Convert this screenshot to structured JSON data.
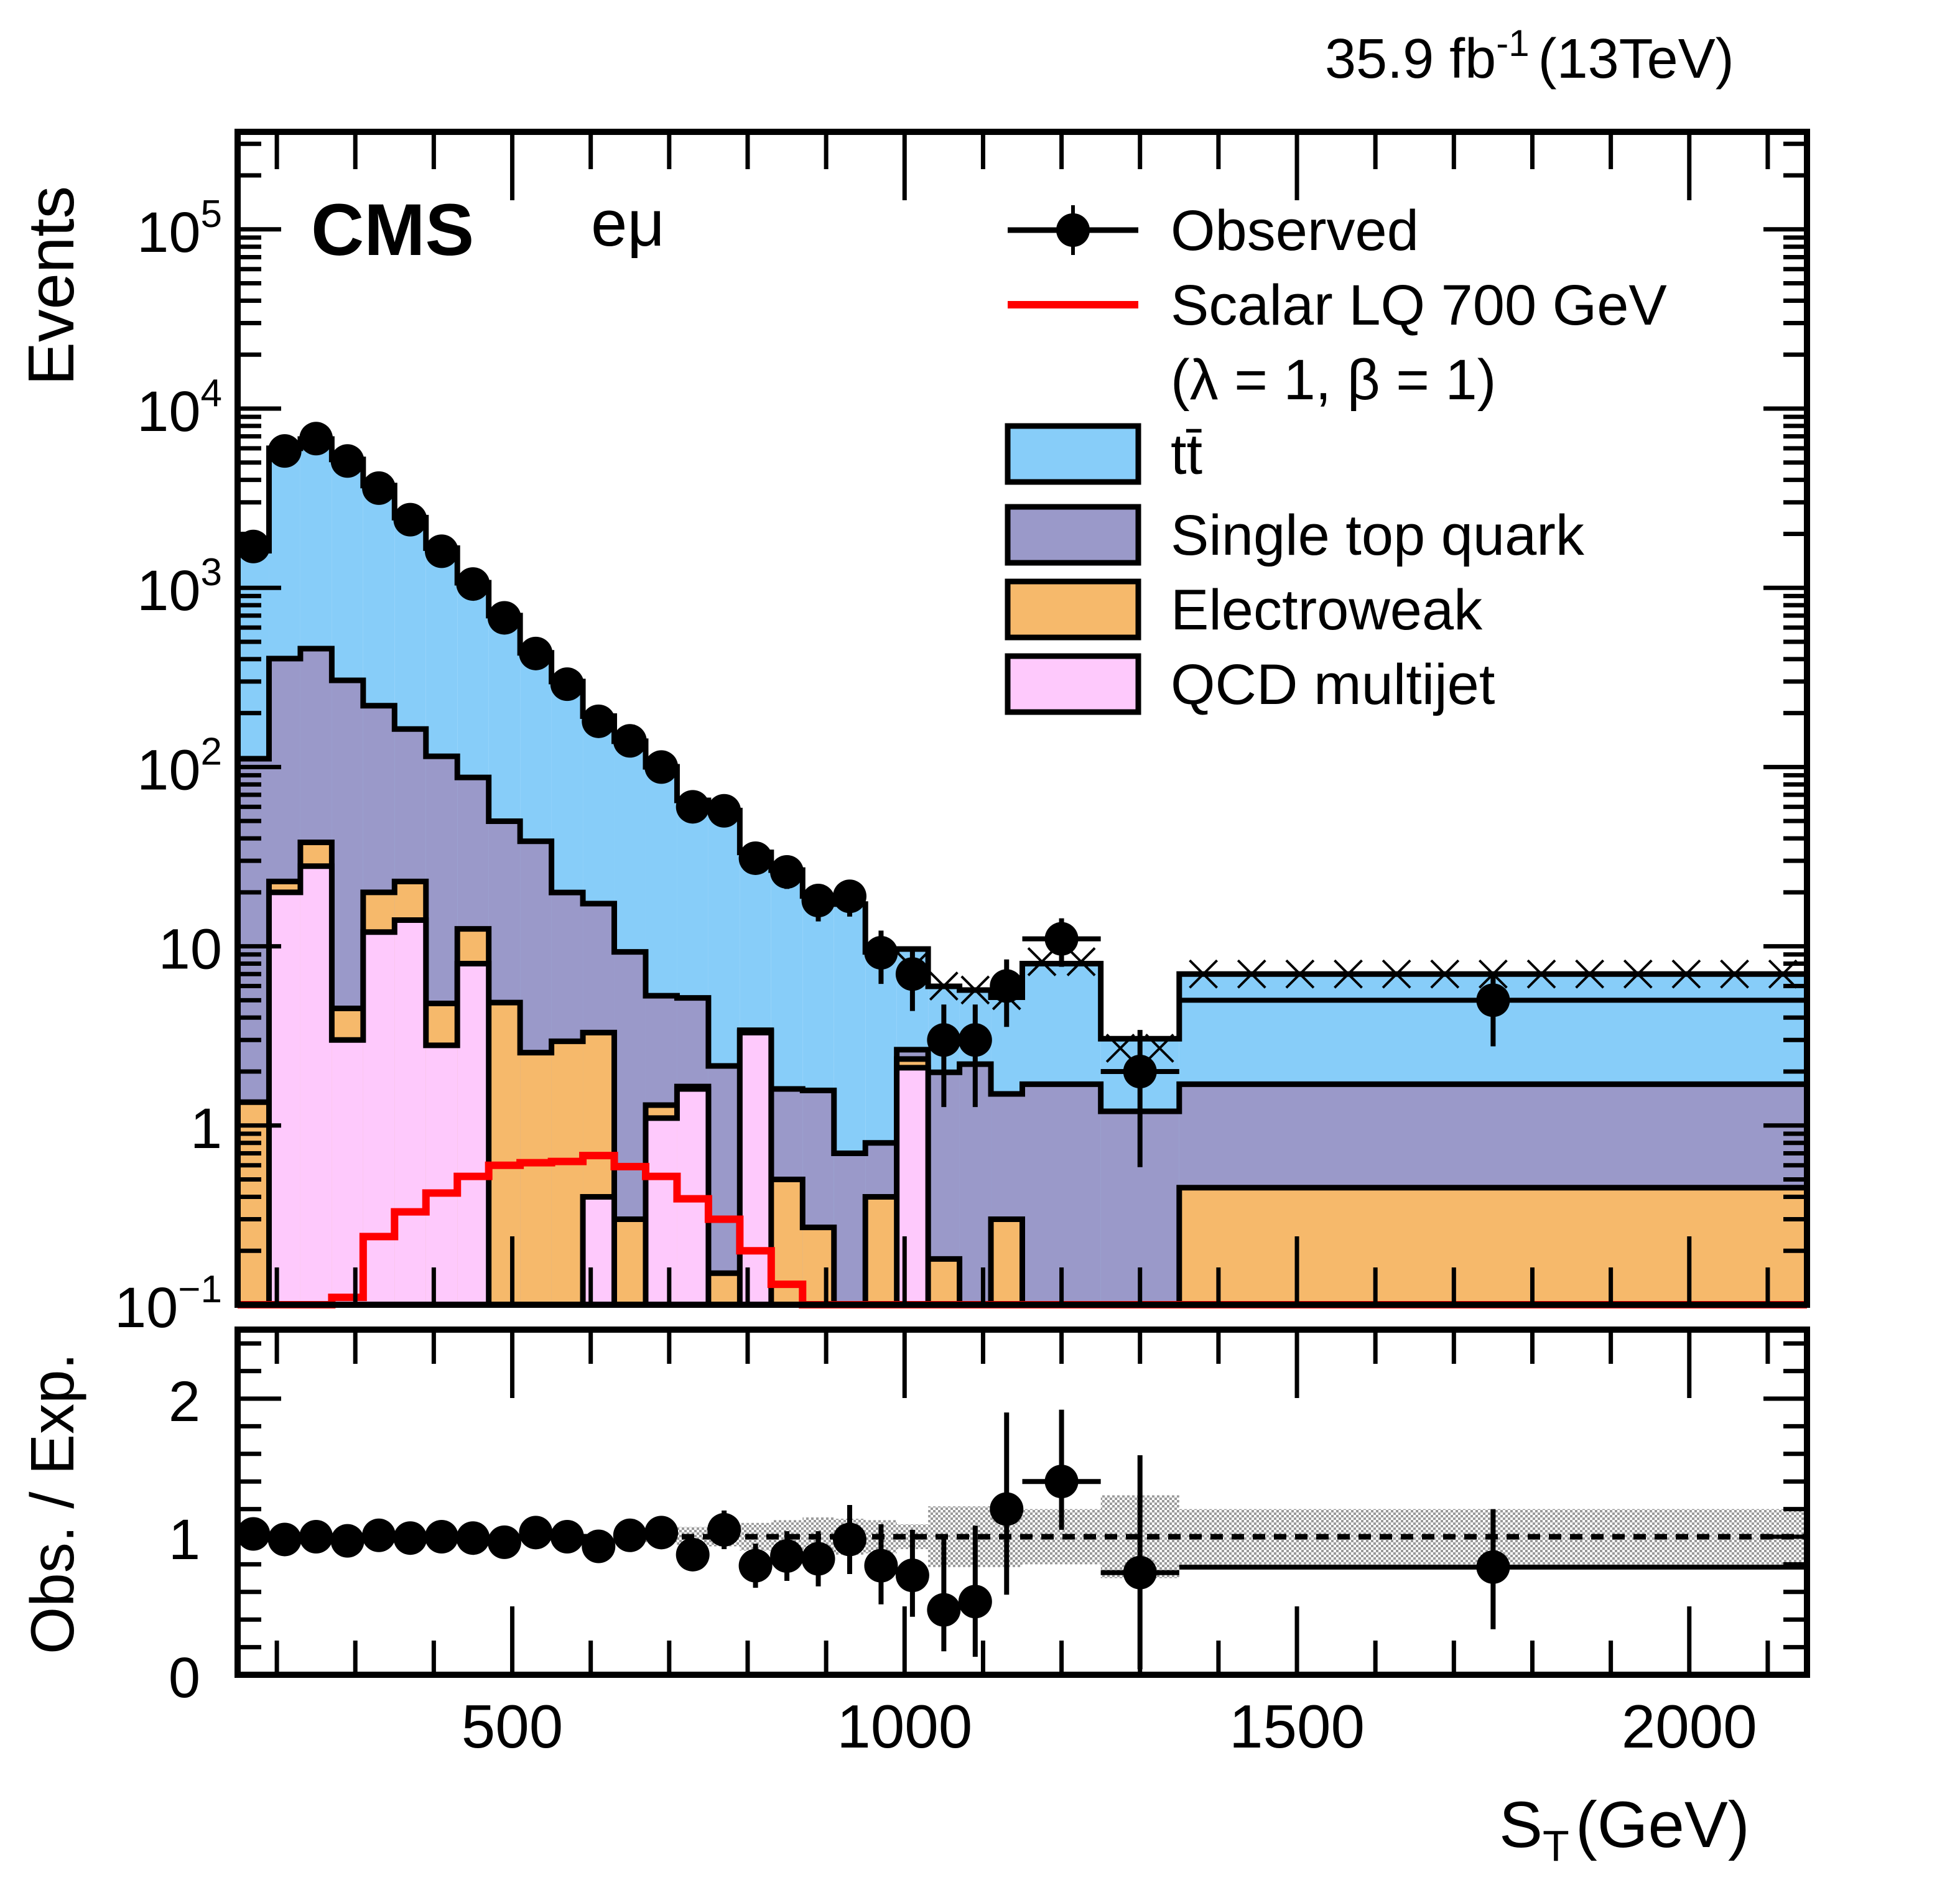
{
  "header": {
    "lumi_label": "35.9 fb",
    "lumi_exp": "-1",
    "energy_label": "(13TeV)",
    "experiment": "CMS",
    "channel": "eμ"
  },
  "legend": {
    "items": [
      {
        "key": "observed",
        "label": "Observed",
        "kind": "marker"
      },
      {
        "key": "signal",
        "label": "Scalar LQ 700 GeV",
        "label2": "(λ = 1, β = 1)",
        "kind": "line",
        "color": "#ff0000"
      },
      {
        "key": "ttbar",
        "label": "tt̄",
        "kind": "box",
        "color": "#87cdf9"
      },
      {
        "key": "single_top",
        "label": "Single top quark",
        "kind": "box",
        "color": "#9a99c9"
      },
      {
        "key": "electroweak",
        "label": "Electroweak",
        "kind": "box",
        "color": "#f6b96b"
      },
      {
        "key": "qcd",
        "label": "QCD multijet",
        "kind": "box",
        "color": "#fec9fc"
      }
    ]
  },
  "chart_data": [
    {
      "type": "bar",
      "subtype": "stacked-histogram-log",
      "title": "",
      "xlabel": "S_T (GeV)",
      "ylabel": "Events",
      "xlim": [
        150,
        2150
      ],
      "ylim": [
        0.1,
        350000
      ],
      "yscale": "log",
      "ytick_labels": [
        "10^-1",
        "1",
        "10",
        "10^2",
        "10^3",
        "10^4",
        "10^5"
      ],
      "ytick_values": [
        0.1,
        1,
        10,
        100,
        1000,
        10000,
        100000
      ],
      "bin_edges": [
        150,
        190,
        230,
        270,
        310,
        350,
        390,
        430,
        470,
        510,
        550,
        590,
        630,
        670,
        710,
        750,
        790,
        830,
        870,
        910,
        950,
        990,
        1030,
        1070,
        1110,
        1150,
        1250,
        1350,
        2150
      ],
      "series": [
        {
          "name": "QCD multijet",
          "values": [
            0.05,
            20,
            28,
            3,
            12,
            14,
            2.8,
            8,
            0.05,
            0.05,
            0.05,
            0.4,
            0.1,
            1.1,
            1.6,
            0.05,
            3.3,
            0.05,
            0.05,
            0.05,
            0.05,
            2.1,
            0.05,
            0.05,
            0.05,
            0.05,
            0.05,
            0.05
          ]
        },
        {
          "name": "Electroweak",
          "values": [
            1.3,
            3,
            10,
            1.5,
            8,
            9,
            2,
            4.5,
            4.8,
            2.5,
            2.9,
            2.9,
            0.2,
            0.2,
            0.05,
            0.1,
            0.05,
            0.45,
            0.22,
            0.05,
            0.35,
            0.25,
            0.13,
            0.05,
            0.25,
            0.05,
            0.05,
            0.4
          ]
        },
        {
          "name": "Single top quark",
          "values": [
            110,
            380,
            420,
            300,
            200,
            140,
            110,
            75,
            45,
            36,
            17,
            14,
            9,
            4,
            3.5,
            2,
            0.05,
            1.1,
            1.3,
            0.6,
            0.4,
            0.3,
            1.8,
            2.1,
            1.2,
            1.6,
            1.1,
            1.25
          ]
        },
        {
          "name": "ttbar",
          "values": [
            1500,
            5600,
            6300,
            4900,
            3500,
            2300,
            1550,
            980,
            650,
            395,
            280,
            175,
            130,
            95,
            60,
            55,
            30,
            25,
            17.5,
            16.5,
            8.5,
            7,
            4,
            3.5,
            3.7,
            6.3,
            1.85,
            5.3
          ]
        }
      ],
      "observed": {
        "name": "Observed",
        "values": [
          1700,
          5800,
          6800,
          5100,
          3600,
          2400,
          1600,
          1050,
          680,
          430,
          290,
          180,
          140,
          100,
          60,
          57,
          31,
          26,
          18,
          19,
          9.2,
          7,
          3,
          3,
          6,
          11,
          2,
          5
        ]
      },
      "signal": {
        "name": "Scalar LQ 700 GeV (λ = 1, β = 1)",
        "values": [
          0.1,
          0.1,
          0.1,
          0.11,
          0.24,
          0.33,
          0.42,
          0.52,
          0.6,
          0.62,
          0.63,
          0.68,
          0.59,
          0.52,
          0.39,
          0.3,
          0.2,
          0.13,
          0.1,
          0.1,
          0.1,
          0.1,
          0.1,
          0.1,
          0.1,
          0.1,
          0.1,
          0.1
        ]
      },
      "stat_uncertainty_total": [
        1610,
        6000,
        6760,
        5200,
        3720,
        2460,
        1670,
        1070,
        700,
        435,
        300,
        192,
        139,
        100,
        65,
        58,
        34,
        27,
        19.5,
        18,
        9.3,
        7.6,
        6,
        5.7,
        5.3,
        8.2,
        2.7,
        7
      ]
    },
    {
      "type": "scatter",
      "subtype": "ratio",
      "xlabel": "S_T (GeV)",
      "ylabel": "Obs. / Exp.",
      "xlim": [
        150,
        2150
      ],
      "ylim": [
        0,
        2.5
      ],
      "xtick_labels": [
        "500",
        "1000",
        "1500",
        "2000"
      ],
      "xtick_values": [
        500,
        1000,
        1500,
        2000
      ],
      "ytick_labels": [
        "0",
        "1",
        "2"
      ],
      "ytick_values": [
        0,
        1,
        2
      ],
      "reference_line": 1,
      "values": [
        1.02,
        0.98,
        1.0,
        0.97,
        1.01,
        0.99,
        1.0,
        0.99,
        0.96,
        1.03,
        1.0,
        0.93,
        1.01,
        1.03,
        0.87,
        1.05,
        0.79,
        0.86,
        0.84,
        0.98,
        0.79,
        0.72,
        0.47,
        0.53,
        1.2,
        1.4,
        0.74,
        0.78
      ],
      "err_up": [
        0.03,
        0.02,
        0.02,
        0.02,
        0.02,
        0.02,
        0.03,
        0.03,
        0.04,
        0.05,
        0.06,
        0.08,
        0.09,
        0.11,
        0.12,
        0.14,
        0.16,
        0.18,
        0.2,
        0.25,
        0.3,
        0.33,
        0.55,
        0.55,
        0.7,
        0.52,
        0.85,
        0.42
      ],
      "err_down": [
        0.03,
        0.02,
        0.02,
        0.02,
        0.02,
        0.02,
        0.03,
        0.03,
        0.04,
        0.05,
        0.06,
        0.08,
        0.09,
        0.11,
        0.12,
        0.14,
        0.16,
        0.18,
        0.2,
        0.25,
        0.28,
        0.3,
        0.3,
        0.4,
        0.62,
        0.35,
        0.7,
        0.45
      ],
      "uncertainty_band": [
        0.02,
        0.02,
        0.02,
        0.02,
        0.02,
        0.02,
        0.02,
        0.02,
        0.02,
        0.02,
        0.03,
        0.03,
        0.04,
        0.04,
        0.07,
        0.07,
        0.1,
        0.12,
        0.14,
        0.13,
        0.12,
        0.09,
        0.22,
        0.22,
        0.22,
        0.2,
        0.3,
        0.2
      ]
    }
  ]
}
